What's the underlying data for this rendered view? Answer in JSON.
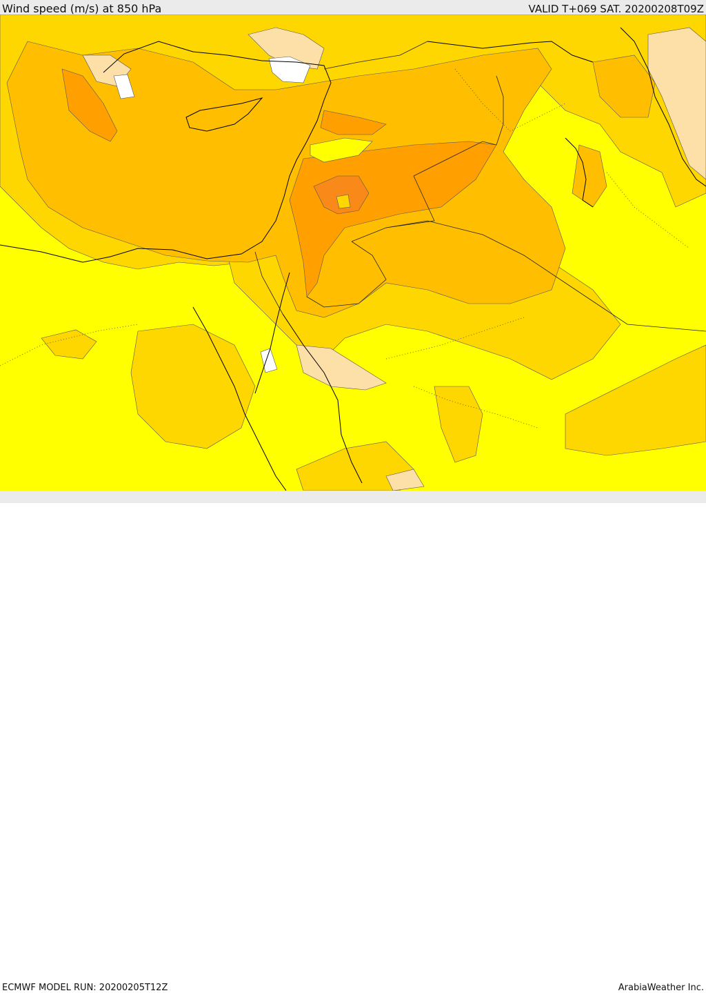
{
  "header": {
    "title": "Wind speed (m/s) at 850 hPa",
    "valid": "VALID T+069 SAT. 20200208T09Z"
  },
  "footer": {
    "model_run": "ECMWF MODEL RUN: 20200205T12Z",
    "credit": "ArabiaWeather Inc."
  },
  "colors": {
    "background_frame": "#ebebeb",
    "level_low": "#ffff00",
    "level_mid": "#ffd700",
    "level_high": "#ffbf00",
    "level_higher": "#ff9f00",
    "level_peak": "#f98a1a",
    "calm_tan": "#fde0a8",
    "calm_white": "#ffffff",
    "coastline": "#000000"
  }
}
